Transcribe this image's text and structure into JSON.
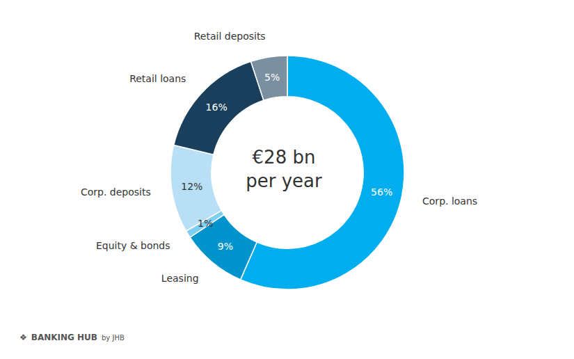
{
  "chart_data": {
    "type": "pie",
    "categories": [
      "Corp. loans",
      "Leasing",
      "Equity & bonds",
      "Corp. deposits",
      "Retail loans",
      "Retail deposits"
    ],
    "values": [
      56,
      9,
      1,
      12,
      16,
      5
    ],
    "value_labels": [
      "56%",
      "9%",
      "1%",
      "12%",
      "16%",
      "5%"
    ],
    "data_labels": true,
    "colors": [
      "#00AEEF",
      "#0093CC",
      "#7DCEF0",
      "#B8DFF5",
      "#1A3F5C",
      "#7A8FA0"
    ],
    "annotations": [
      "€28 bn\nper year",
      "❖",
      "BANKING HUB",
      "by JHB"
    ]
  }
}
